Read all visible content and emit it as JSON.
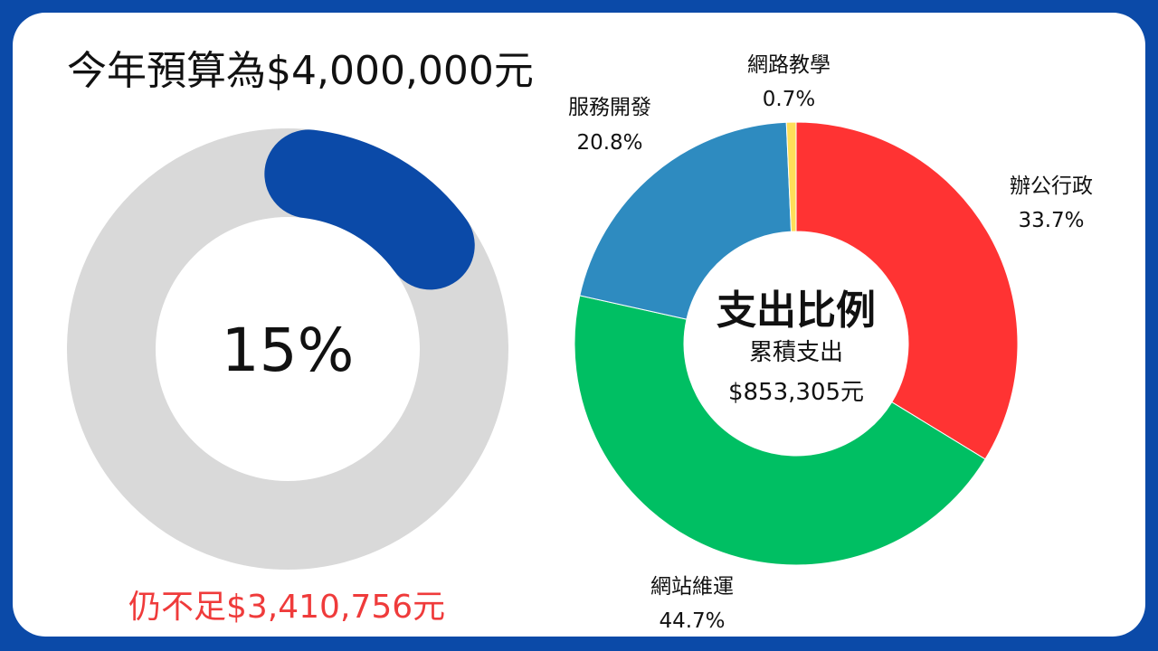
{
  "header": {
    "budget_title": "今年預算為$4,000,000元"
  },
  "progress": {
    "label": "15%",
    "value": 0.15,
    "track_color": "#d9d9d9",
    "fill_color": "#0b4aa8"
  },
  "shortfall": {
    "text": "仍不足$3,410,756元",
    "color": "#ef3b3b"
  },
  "chart_data": {
    "type": "pie",
    "donut": true,
    "center": {
      "title": "支出比例",
      "line1": "累積支出",
      "line2": "$853,305元"
    },
    "slices": [
      {
        "name": "辦公行政",
        "value": 33.7,
        "label": "33.7%",
        "color": "#ff3333"
      },
      {
        "name": "網站維運",
        "value": 44.7,
        "label": "44.7%",
        "color": "#00bf63"
      },
      {
        "name": "服務開發",
        "value": 20.8,
        "label": "20.8%",
        "color": "#2e8bc0"
      },
      {
        "name": "網路教學",
        "value": 0.7,
        "label": "0.7%",
        "color": "#ffde59"
      }
    ]
  }
}
